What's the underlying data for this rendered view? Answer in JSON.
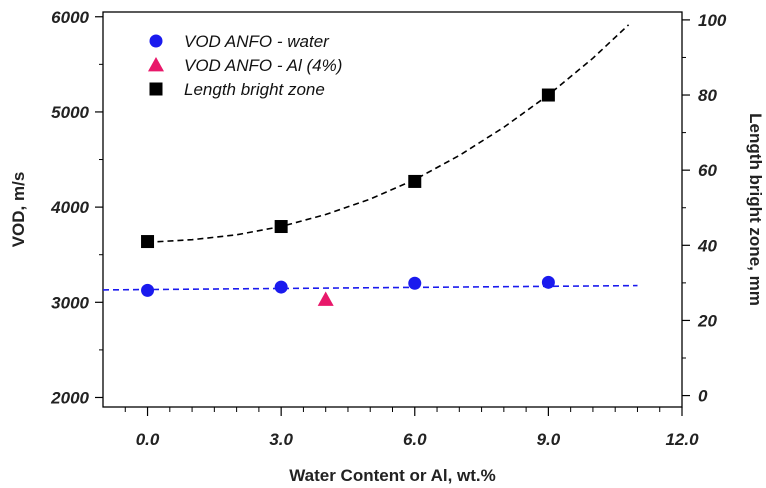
{
  "chart_data": {
    "type": "scatter",
    "xlabel": "Water Content or Al, wt.%",
    "ylabel": "VOD, m/s",
    "y2label": "Length bright zone, mm",
    "xlim": [
      -1.0,
      12.0
    ],
    "ylim": [
      1900,
      6050
    ],
    "y2lim": [
      -3.04,
      102.1
    ],
    "x_ticks": [
      "0.0",
      "3.0",
      "6.0",
      "9.0",
      "12.0"
    ],
    "x_tick_values": [
      0,
      3,
      6,
      9,
      12
    ],
    "y_ticks": [
      "2000",
      "3000",
      "4000",
      "5000",
      "6000"
    ],
    "y_tick_values": [
      2000,
      3000,
      4000,
      5000,
      6000
    ],
    "y2_ticks": [
      "0",
      "20",
      "40",
      "60",
      "80",
      "100"
    ],
    "y2_tick_values": [
      0,
      20,
      40,
      60,
      80,
      100
    ],
    "legend_position": "top-left",
    "series": [
      {
        "name": "VOD ANFO - water",
        "marker": "circle",
        "color": "#1a1aee",
        "axis": "left",
        "x": [
          0,
          3,
          6,
          9
        ],
        "y": [
          3125,
          3160,
          3200,
          3210
        ]
      },
      {
        "name": "VOD ANFO - Al (4%)",
        "marker": "triangle",
        "color": "#e8186a",
        "axis": "left",
        "x": [
          4
        ],
        "y": [
          3030
        ]
      },
      {
        "name": "Length bright zone",
        "marker": "square",
        "color": "#000000",
        "axis": "right",
        "x": [
          0,
          3,
          6,
          9
        ],
        "y": [
          41,
          45,
          57,
          80
        ]
      }
    ],
    "trendlines": [
      {
        "color": "#1a1aee",
        "style": "dashed",
        "axis": "left",
        "x": [
          -1,
          11
        ],
        "y": [
          3130,
          3175
        ]
      },
      {
        "color": "#000000",
        "style": "dashed",
        "axis": "right",
        "x": [
          0,
          1,
          2,
          3,
          4,
          5,
          6,
          7,
          8,
          9,
          10,
          10.8
        ],
        "y": [
          40.8,
          41.5,
          42.8,
          45.0,
          48.2,
          52.3,
          57.5,
          63.9,
          71.4,
          80.0,
          89.8,
          98.7
        ]
      }
    ]
  }
}
